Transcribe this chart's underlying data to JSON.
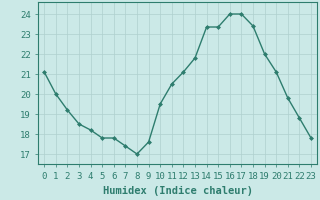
{
  "xlabel": "Humidex (Indice chaleur)",
  "x_values": [
    0,
    1,
    2,
    3,
    4,
    5,
    6,
    7,
    8,
    9,
    10,
    11,
    12,
    13,
    14,
    15,
    16,
    17,
    18,
    19,
    20,
    21,
    22,
    23
  ],
  "y_values": [
    21.1,
    20.0,
    19.2,
    18.5,
    18.2,
    17.8,
    17.8,
    17.4,
    17.0,
    17.6,
    19.5,
    20.5,
    21.1,
    21.8,
    23.35,
    23.35,
    24.0,
    24.0,
    23.4,
    22.0,
    21.1,
    19.8,
    18.8,
    17.8
  ],
  "line_color": "#2e7d6e",
  "marker": "D",
  "marker_size": 2.0,
  "bg_color": "#cbe9e7",
  "grid_color": "#afd0ce",
  "axis_color": "#2e7d6e",
  "tick_label_color": "#2e7d6e",
  "xlabel_color": "#2e7d6e",
  "ylim": [
    16.5,
    24.6
  ],
  "yticks": [
    17,
    18,
    19,
    20,
    21,
    22,
    23,
    24
  ],
  "xlim": [
    -0.5,
    23.5
  ],
  "xticks": [
    0,
    1,
    2,
    3,
    4,
    5,
    6,
    7,
    8,
    9,
    10,
    11,
    12,
    13,
    14,
    15,
    16,
    17,
    18,
    19,
    20,
    21,
    22,
    23
  ],
  "xlabel_fontsize": 7.5,
  "tick_fontsize": 6.5,
  "line_width": 1.0
}
